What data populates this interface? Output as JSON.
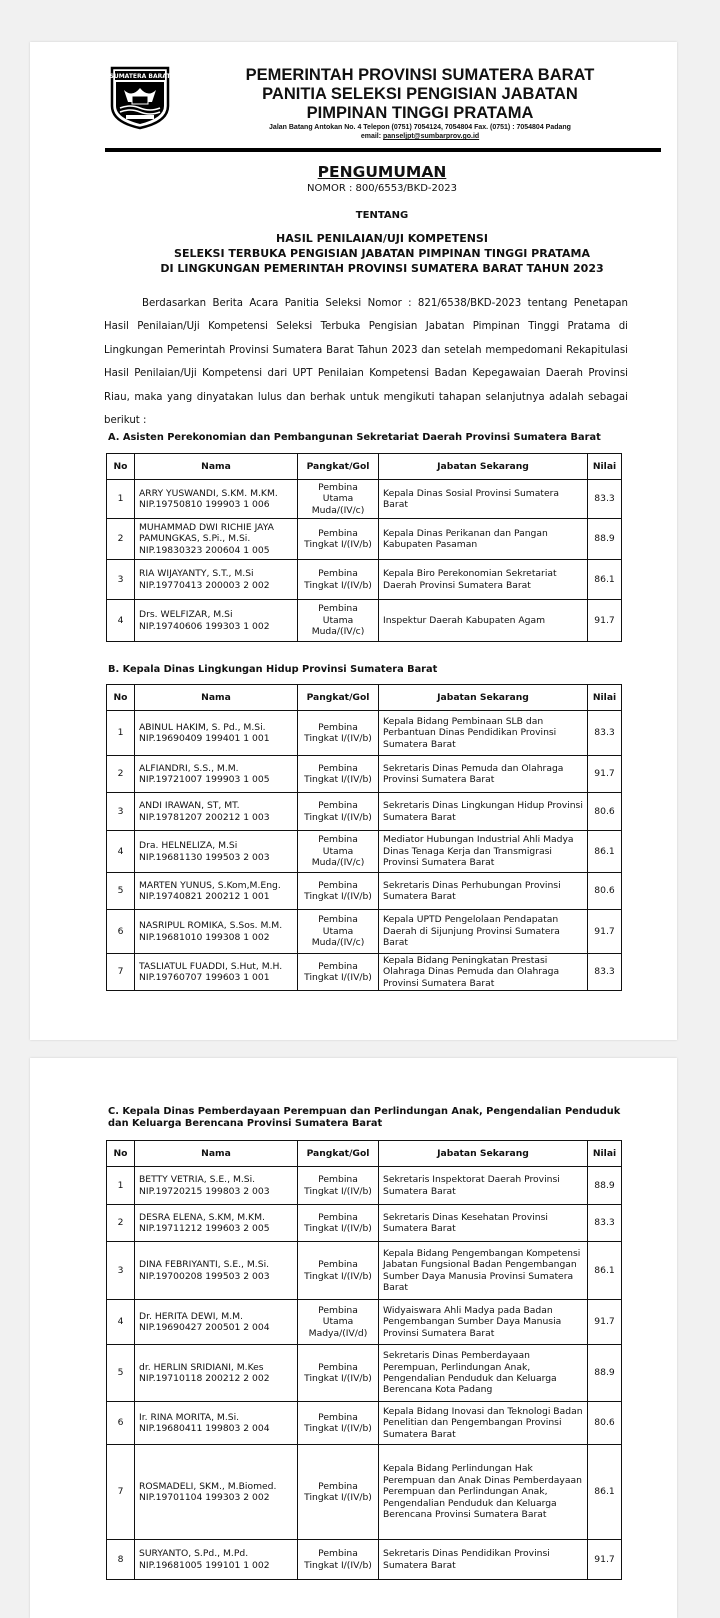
{
  "header": {
    "logo_text_top": "SUMATERA BARAT",
    "line1": "PEMERINTAH PROVINSI SUMATERA BARAT",
    "line2": "PANITIA SELEKSI PENGISIAN JABATAN",
    "line3": "PIMPINAN TINGGI PRATAMA",
    "address": "Jalan Batang Antokan No. 4 Telepon (0751) 7054124, 7054804 Fax. (0751) : 7054804 Padang",
    "email_label": "email: ",
    "email": "panseljpt@sumbarprov.go.id"
  },
  "announcement": {
    "title": "PENGUMUMAN",
    "nomor": "NOMOR : 800/6553/BKD-2023",
    "tentang": "TENTANG",
    "subject1": "HASIL PENILAIAN/UJI KOMPETENSI",
    "subject2": "SELEKSI TERBUKA PENGISIAN JABATAN PIMPINAN TINGGI PRATAMA",
    "subject3": "DI LINGKUNGAN PEMERINTAH PROVINSI SUMATERA BARAT TAHUN 2023",
    "paragraph": "Berdasarkan Berita Acara Panitia Seleksi Nomor : 821/6538/BKD-2023 tentang Penetapan Hasil Penilaian/Uji Kompetensi Seleksi Terbuka Pengisian Jabatan Pimpinan Tinggi Pratama di Lingkungan Pemerintah Provinsi Sumatera Barat Tahun 2023 dan setelah mempedomani Rekapitulasi Hasil Penilaian/Uji Kompetensi dari UPT Penilaian Kompetensi Badan Kepegawaian Daerah Provinsi Riau, maka yang dinyatakan lulus dan berhak untuk mengikuti tahapan selanjutnya adalah sebagai berikut :"
  },
  "columns": [
    "No",
    "Nama",
    "Pangkat/Gol",
    "Jabatan Sekarang",
    "Nilai"
  ],
  "sections": [
    {
      "title": "A.  Asisten Perekonomian dan Pembangunan Sekretariat Daerah Provinsi Sumatera Barat",
      "rows": [
        {
          "no": "1",
          "nama": "ARRY YUSWANDI, S.KM. M.KM.",
          "nip": "NIP.19750810 199903 1 006",
          "pangkat": "Pembina Utama Muda/(IV/c)",
          "jabatan": "Kepala Dinas Sosial Provinsi Sumatera Barat",
          "nilai": "83.3"
        },
        {
          "no": "2",
          "nama": "MUHAMMAD DWI RICHIE JAYA PAMUNGKAS, S.Pi., M.Si.",
          "nip": "NIP.19830323 200604 1 005",
          "pangkat": "Pembina Tingkat I/(IV/b)",
          "jabatan": "Kepala Dinas Perikanan dan Pangan Kabupaten Pasaman",
          "nilai": "88.9"
        },
        {
          "no": "3",
          "nama": "RIA WIJAYANTY, S.T., M.Si",
          "nip": "NIP.19770413 200003 2 002",
          "pangkat": "Pembina Tingkat I/(IV/b)",
          "jabatan": "Kepala Biro Perekonomian Sekretariat Daerah Provinsi Sumatera Barat",
          "nilai": "86.1"
        },
        {
          "no": "4",
          "nama": "Drs. WELFIZAR, M.Si",
          "nip": "NIP.19740606 199303 1 002",
          "pangkat": "Pembina Utama Muda/(IV/c)",
          "jabatan": "Inspektur Daerah Kabupaten Agam",
          "nilai": "91.7"
        }
      ]
    },
    {
      "title": "B.  Kepala Dinas Lingkungan Hidup Provinsi Sumatera Barat",
      "rows": [
        {
          "no": "1",
          "nama": "ABINUL HAKIM, S. Pd., M.Si.",
          "nip": "NIP.19690409 199401 1 001",
          "pangkat": "Pembina Tingkat I/(IV/b)",
          "jabatan": "Kepala Bidang Pembinaan SLB dan Perbantuan Dinas Pendidikan Provinsi Sumatera Barat",
          "nilai": "83.3"
        },
        {
          "no": "2",
          "nama": "ALFIANDRI, S.S., M.M.",
          "nip": "NIP.19721007 199903 1 005",
          "pangkat": "Pembina Tingkat I/(IV/b)",
          "jabatan": "Sekretaris Dinas Pemuda dan Olahraga Provinsi Sumatera Barat",
          "nilai": "91.7"
        },
        {
          "no": "3",
          "nama": "ANDI IRAWAN, ST, MT.",
          "nip": "NIP.19781207 200212 1 003",
          "pangkat": "Pembina Tingkat I/(IV/b)",
          "jabatan": "Sekretaris Dinas Lingkungan Hidup Provinsi Sumatera Barat",
          "nilai": "80.6"
        },
        {
          "no": "4",
          "nama": "Dra. HELNELIZA, M.Si",
          "nip": "NIP.19681130 199503 2 003",
          "pangkat": "Pembina Utama Muda/(IV/c)",
          "jabatan": "Mediator Hubungan Industrial Ahli Madya Dinas Tenaga Kerja dan Transmigrasi Provinsi Sumatera Barat",
          "nilai": "86.1"
        },
        {
          "no": "5",
          "nama": "MARTEN YUNUS, S.Kom,M.Eng.",
          "nip": "NIP.19740821 200212 1 001",
          "pangkat": "Pembina Tingkat I/(IV/b)",
          "jabatan": "Sekretaris Dinas Perhubungan Provinsi Sumatera Barat",
          "nilai": "80.6"
        },
        {
          "no": "6",
          "nama": "NASRIPUL ROMIKA, S.Sos. M.M.",
          "nip": "NIP.19681010 199308 1 002",
          "pangkat": "Pembina Utama Muda/(IV/c)",
          "jabatan": "Kepala UPTD Pengelolaan Pendapatan Daerah di Sijunjung Provinsi Sumatera Barat",
          "nilai": "91.7"
        },
        {
          "no": "7",
          "nama": "TASLIATUL FUADDI, S.Hut, M.H.",
          "nip": "NIP.19760707 199603 1 001",
          "pangkat": "Pembina Tingkat I/(IV/b)",
          "jabatan": "Kepala Bidang Peningkatan Prestasi Olahraga Dinas Pemuda dan Olahraga Provinsi Sumatera Barat",
          "nilai": "83.3"
        }
      ]
    },
    {
      "title": "C.  Kepala Dinas Pemberdayaan Perempuan dan Perlindungan Anak, Pengendalian Penduduk dan Keluarga Berencana Provinsi Sumatera Barat",
      "rows": [
        {
          "no": "1",
          "nama": "BETTY VETRIA, S.E., M.Si.",
          "nip": "NIP.19720215 199803 2 003",
          "pangkat": "Pembina Tingkat I/(IV/b)",
          "jabatan": "Sekretaris Inspektorat Daerah Provinsi Sumatera Barat",
          "nilai": "88.9"
        },
        {
          "no": "2",
          "nama": "DESRA ELENA, S.KM, M.KM.",
          "nip": "NIP.19711212 199603 2 005",
          "pangkat": "Pembina Tingkat I/(IV/b)",
          "jabatan": "Sekretaris Dinas Kesehatan Provinsi Sumatera Barat",
          "nilai": "83.3"
        },
        {
          "no": "3",
          "nama": "DINA FEBRIYANTI, S.E., M.Si.",
          "nip": "NIP.19700208 199503 2 003",
          "pangkat": "Pembina Tingkat I/(IV/b)",
          "jabatan": "Kepala Bidang Pengembangan Kompetensi Jabatan Fungsional Badan Pengembangan Sumber Daya Manusia Provinsi Sumatera Barat",
          "nilai": "86.1"
        },
        {
          "no": "4",
          "nama": "Dr. HERITA DEWI, M.M.",
          "nip": "NIP.19690427 200501 2 004",
          "pangkat": "Pembina Utama Madya/(IV/d)",
          "jabatan": "Widyaiswara Ahli Madya pada Badan Pengembangan Sumber Daya Manusia Provinsi Sumatera Barat",
          "nilai": "91.7"
        },
        {
          "no": "5",
          "nama": "dr. HERLIN SRIDIANI, M.Kes",
          "nip": "NIP.19710118 200212 2 002",
          "pangkat": "Pembina Tingkat I/(IV/b)",
          "jabatan": "Sekretaris Dinas Pemberdayaan Perempuan, Perlindungan Anak, Pengendalian Penduduk dan Keluarga Berencana Kota Padang",
          "nilai": "88.9"
        },
        {
          "no": "6",
          "nama": "Ir. RINA MORITA, M.Si.",
          "nip": "NIP.19680411 199803 2 004",
          "pangkat": "Pembina Tingkat I/(IV/b)",
          "jabatan": "Kepala Bidang Inovasi dan Teknologi Badan Penelitian dan Pengembangan Provinsi Sumatera Barat",
          "nilai": "80.6"
        },
        {
          "no": "7",
          "nama": "ROSMADELI, SKM., M.Biomed.",
          "nip": "NIP.19701104 199303 2 002",
          "pangkat": "Pembina Tingkat I/(IV/b)",
          "jabatan": "Kepala Bidang Perlindungan Hak Perempuan dan Anak Dinas Pemberdayaan Perempuan dan Perlindungan Anak, Pengendalian Penduduk dan Keluarga Berencana Provinsi Sumatera Barat",
          "nilai": "86.1"
        },
        {
          "no": "8",
          "nama": "SURYANTO, S.Pd., M.Pd.",
          "nip": "NIP.19681005 199101 1 002",
          "pangkat": "Pembina Tingkat I/(IV/b)",
          "jabatan": "Sekretaris Dinas Pendidikan Provinsi Sumatera Barat",
          "nilai": "91.7"
        }
      ]
    }
  ]
}
